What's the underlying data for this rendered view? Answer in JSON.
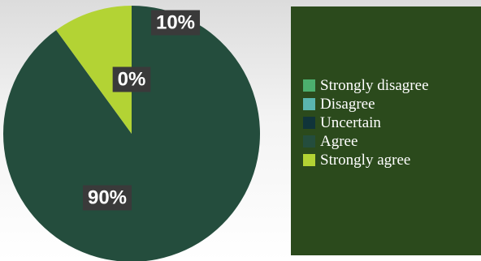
{
  "chart_data": {
    "type": "pie",
    "categories": [
      "Strongly disagree",
      "Disagree",
      "Uncertain",
      "Agree",
      "Strongly agree"
    ],
    "values": [
      0,
      0,
      0,
      90,
      10
    ],
    "colors": [
      "#4caf6e",
      "#5ab6b0",
      "#10343a",
      "#244d3d",
      "#b3d334"
    ],
    "data_labels": [
      {
        "category": "Strongly agree",
        "text": "10%"
      },
      {
        "category": "Uncertain",
        "text": "0%"
      },
      {
        "category": "Agree",
        "text": "90%"
      }
    ],
    "legend_position": "right",
    "title": ""
  }
}
